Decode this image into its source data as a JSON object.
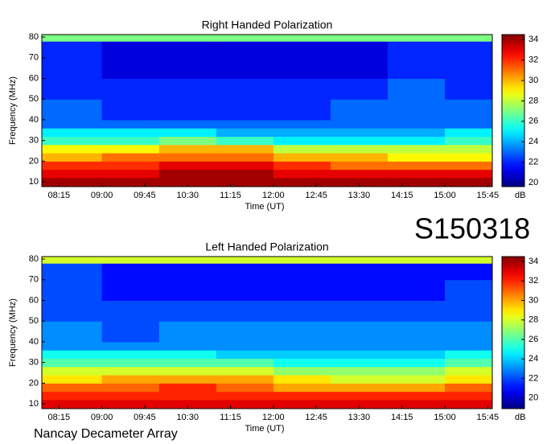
{
  "chart_data": [
    {
      "type": "heatmap",
      "title": "Right Handed Polarization",
      "xlabel": "Time (UT)",
      "ylabel": "Frequency (MHz)",
      "colormap": "jet",
      "colorbar_label": "dB",
      "xlim": [
        7.95,
        15.83
      ],
      "ylim": [
        7.7,
        81.2
      ],
      "clim": [
        19.6,
        34.5
      ],
      "xticks": [
        {
          "value": 8.25,
          "label": "08:15"
        },
        {
          "value": 9.0,
          "label": "09:00"
        },
        {
          "value": 9.75,
          "label": "09:45"
        },
        {
          "value": 10.5,
          "label": "10:30"
        },
        {
          "value": 11.25,
          "label": "11:15"
        },
        {
          "value": 12.0,
          "label": "12:00"
        },
        {
          "value": 12.75,
          "label": "12:45"
        },
        {
          "value": 13.5,
          "label": "13:30"
        },
        {
          "value": 14.25,
          "label": "14:15"
        },
        {
          "value": 15.0,
          "label": "15:00"
        },
        {
          "value": 15.75,
          "label": "15:45"
        }
      ],
      "yticks": [
        10,
        20,
        30,
        40,
        50,
        60,
        70,
        80
      ],
      "cticks": [
        20,
        22,
        24,
        26,
        28,
        30,
        32,
        34
      ],
      "xbins": [
        7.95,
        9,
        10,
        11,
        12,
        13,
        14,
        15,
        15.83
      ],
      "ybins": [
        7.7,
        12,
        16,
        20,
        24,
        28,
        32,
        36,
        40,
        50,
        60,
        70,
        78,
        81.2
      ],
      "z": [
        [
          34,
          34,
          34,
          34,
          34,
          34,
          34,
          34
        ],
        [
          33,
          33,
          34,
          34,
          33,
          33,
          33,
          33
        ],
        [
          32,
          32,
          33,
          33,
          32,
          31,
          31,
          31
        ],
        [
          30,
          31,
          31,
          31,
          30,
          30,
          29,
          29
        ],
        [
          29,
          29,
          30,
          30,
          28,
          28,
          28,
          28
        ],
        [
          26,
          26,
          27,
          26,
          25,
          25,
          25,
          26
        ],
        [
          25,
          25,
          25,
          24,
          24,
          24,
          24,
          25
        ],
        [
          23,
          23,
          23,
          23,
          23,
          23,
          23,
          23
        ],
        [
          23,
          22,
          22,
          22,
          22,
          23,
          23,
          23
        ],
        [
          22,
          22,
          22,
          22,
          22,
          22,
          23,
          22
        ],
        [
          22,
          21,
          21,
          21,
          21,
          21,
          22,
          22
        ],
        [
          22,
          21,
          21,
          21,
          21,
          21,
          22,
          22
        ],
        [
          27,
          27,
          27,
          27,
          27,
          27,
          27,
          27
        ]
      ]
    },
    {
      "type": "heatmap",
      "title": "Left Handed Polarization",
      "xlabel": "Time (UT)",
      "ylabel": "Frequency (MHz)",
      "colormap": "jet",
      "colorbar_label": "dB",
      "xlim": [
        7.95,
        15.83
      ],
      "ylim": [
        7.7,
        81.2
      ],
      "clim": [
        18.9,
        34.5
      ],
      "xticks": [
        {
          "value": 8.25,
          "label": "08:15"
        },
        {
          "value": 9.0,
          "label": "09:00"
        },
        {
          "value": 9.75,
          "label": "09:45"
        },
        {
          "value": 10.5,
          "label": "10:30"
        },
        {
          "value": 11.25,
          "label": "11:15"
        },
        {
          "value": 12.0,
          "label": "12:00"
        },
        {
          "value": 12.75,
          "label": "12:45"
        },
        {
          "value": 13.5,
          "label": "13:30"
        },
        {
          "value": 14.25,
          "label": "14:15"
        },
        {
          "value": 15.0,
          "label": "15:00"
        },
        {
          "value": 15.75,
          "label": "15:45"
        }
      ],
      "yticks": [
        10,
        20,
        30,
        40,
        50,
        60,
        70,
        80
      ],
      "cticks": [
        20,
        22,
        24,
        26,
        28,
        30,
        32,
        34
      ],
      "xbins": [
        7.95,
        9,
        10,
        11,
        12,
        13,
        14,
        15,
        15.83
      ],
      "ybins": [
        7.7,
        12,
        16,
        20,
        24,
        28,
        32,
        36,
        40,
        50,
        60,
        70,
        78,
        81.2
      ],
      "z": [
        [
          33,
          33,
          33,
          33,
          33,
          33,
          33,
          33
        ],
        [
          32,
          32,
          32,
          32,
          32,
          32,
          32,
          32
        ],
        [
          31,
          31,
          32,
          31,
          30,
          30,
          30,
          31
        ],
        [
          29,
          30,
          30,
          30,
          29,
          28,
          28,
          29
        ],
        [
          28,
          28,
          28,
          28,
          27,
          27,
          27,
          28
        ],
        [
          26,
          26,
          26,
          26,
          25,
          25,
          25,
          26
        ],
        [
          25,
          25,
          25,
          24,
          24,
          24,
          24,
          25
        ],
        [
          23,
          23,
          23,
          23,
          23,
          23,
          23,
          23
        ],
        [
          23,
          22,
          23,
          23,
          23,
          23,
          23,
          23
        ],
        [
          22,
          22,
          22,
          22,
          22,
          22,
          22,
          22
        ],
        [
          22,
          21,
          21,
          21,
          21,
          21,
          21,
          22
        ],
        [
          22,
          21,
          21,
          21,
          21,
          21,
          21,
          21
        ],
        [
          28,
          28,
          28,
          28,
          28,
          28,
          28,
          28
        ]
      ]
    }
  ],
  "event_id": "S150318",
  "footer": "Nancay Decameter Array"
}
